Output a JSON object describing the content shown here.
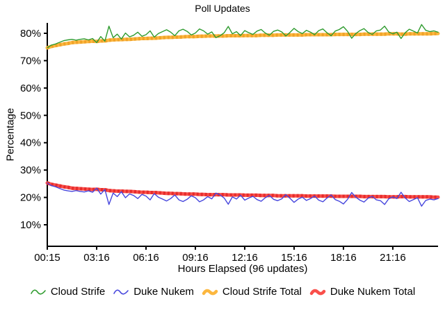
{
  "chart_data": {
    "type": "line",
    "title": "Poll Updates",
    "xlabel": "Hours Elapsed (96 updates)",
    "ylabel": "Percentage",
    "x_points": 96,
    "x_tick_labels": [
      "00:15",
      "03:16",
      "06:16",
      "09:16",
      "12:16",
      "15:16",
      "18:16",
      "21:16"
    ],
    "x_tick_indices": [
      0,
      12,
      24,
      36,
      48,
      60,
      72,
      84
    ],
    "y_ticks": [
      10,
      20,
      30,
      40,
      50,
      60,
      70,
      80
    ],
    "y_tick_labels": [
      "10%",
      "20%",
      "30%",
      "40%",
      "50%",
      "60%",
      "70%",
      "80%"
    ],
    "y_axis_range": [
      2,
      84
    ],
    "grid": false,
    "legend_position": "bottom",
    "axis_color": "#000000",
    "series": [
      {
        "name": "Cloud Strife",
        "color": "#2e9b2e",
        "width": 1.4,
        "style": "solid",
        "values": [
          74.7,
          75.7,
          76.1,
          76.7,
          77.3,
          77.6,
          77.8,
          77.5,
          77.8,
          78.0,
          77.6,
          78.1,
          76.6,
          78.8,
          77.1,
          82.6,
          78.4,
          79.7,
          77.9,
          80.1,
          78.7,
          79.3,
          80.4,
          78.9,
          79.5,
          80.9,
          78.6,
          79.9,
          80.6,
          81.3,
          80.4,
          79.1,
          80.9,
          81.5,
          80.7,
          79.4,
          80.1,
          81.6,
          80.9,
          79.7,
          80.5,
          78.4,
          79.1,
          80.2,
          82.5,
          79.8,
          80.6,
          79.2,
          81.0,
          80.2,
          79.6,
          80.8,
          81.4,
          80.1,
          79.3,
          80.7,
          81.2,
          80.5,
          79.0,
          80.3,
          81.8,
          80.6,
          79.9,
          81.1,
          80.4,
          79.5,
          81.0,
          81.6,
          80.2,
          79.1,
          80.8,
          81.4,
          82.4,
          80.7,
          78.2,
          79.9,
          81.0,
          81.7,
          80.3,
          79.6,
          80.9,
          81.2,
          82.6,
          80.5,
          79.8,
          80.4,
          78.1,
          80.2,
          81.5,
          80.8,
          80.1,
          83.2,
          81.1,
          80.6,
          80.9,
          80.4
        ]
      },
      {
        "name": "Duke Nukem",
        "color": "#4646dd",
        "width": 1.4,
        "style": "solid",
        "values": [
          25.3,
          24.3,
          23.9,
          23.3,
          22.7,
          22.4,
          22.2,
          22.5,
          22.2,
          22.0,
          22.4,
          21.9,
          23.4,
          21.2,
          22.9,
          17.4,
          21.6,
          20.3,
          22.1,
          19.9,
          21.3,
          20.7,
          19.6,
          21.1,
          20.5,
          19.1,
          21.4,
          20.1,
          19.4,
          18.7,
          19.6,
          20.9,
          19.1,
          18.5,
          19.3,
          20.6,
          19.9,
          18.4,
          19.1,
          20.3,
          19.5,
          21.6,
          20.9,
          19.8,
          17.5,
          20.2,
          19.4,
          20.8,
          19.0,
          19.8,
          20.4,
          19.2,
          18.6,
          19.9,
          20.7,
          19.3,
          18.8,
          19.5,
          21.0,
          19.7,
          18.2,
          19.4,
          20.1,
          18.9,
          19.6,
          20.5,
          19.0,
          18.4,
          19.8,
          20.9,
          19.2,
          18.6,
          17.6,
          19.3,
          21.8,
          20.1,
          19.0,
          18.3,
          19.7,
          20.4,
          19.1,
          18.8,
          17.4,
          19.5,
          20.2,
          19.6,
          21.9,
          19.8,
          18.5,
          19.2,
          19.9,
          16.8,
          18.9,
          19.4,
          19.1,
          19.6
        ]
      },
      {
        "name": "Cloud Strife Total",
        "color": "#fcb73f",
        "stripe_color": "#f0a228",
        "width": 5,
        "style": "striped",
        "values": [
          74.7,
          75.2,
          75.5,
          75.8,
          76.1,
          76.3,
          76.6,
          76.7,
          76.8,
          76.9,
          77.0,
          77.1,
          77.0,
          77.2,
          77.2,
          77.5,
          77.6,
          77.7,
          77.7,
          77.8,
          77.8,
          77.9,
          78.0,
          78.1,
          78.1,
          78.2,
          78.2,
          78.3,
          78.4,
          78.5,
          78.5,
          78.6,
          78.6,
          78.7,
          78.8,
          78.8,
          78.8,
          78.9,
          78.9,
          79.0,
          79.0,
          79.0,
          79.0,
          79.0,
          79.1,
          79.1,
          79.1,
          79.1,
          79.2,
          79.2,
          79.2,
          79.2,
          79.3,
          79.3,
          79.3,
          79.3,
          79.4,
          79.4,
          79.4,
          79.4,
          79.4,
          79.4,
          79.4,
          79.5,
          79.5,
          79.5,
          79.5,
          79.5,
          79.5,
          79.5,
          79.6,
          79.6,
          79.6,
          79.6,
          79.6,
          79.6,
          79.6,
          79.7,
          79.7,
          79.7,
          79.7,
          79.7,
          79.7,
          79.8,
          79.8,
          79.8,
          79.7,
          79.7,
          79.8,
          79.8,
          79.8,
          79.8,
          79.8,
          79.8,
          79.9,
          79.9
        ]
      },
      {
        "name": "Duke Nukem Total",
        "color": "#f94f4a",
        "stripe_color": "#e62c2c",
        "width": 5,
        "style": "striped",
        "values": [
          25.3,
          24.8,
          24.5,
          24.2,
          23.9,
          23.7,
          23.4,
          23.3,
          23.2,
          23.1,
          23.0,
          22.9,
          23.0,
          22.8,
          22.8,
          22.5,
          22.4,
          22.3,
          22.3,
          22.2,
          22.2,
          22.1,
          22.0,
          21.9,
          21.9,
          21.8,
          21.8,
          21.7,
          21.6,
          21.5,
          21.5,
          21.4,
          21.4,
          21.3,
          21.2,
          21.2,
          21.2,
          21.1,
          21.1,
          21.0,
          21.0,
          21.0,
          21.0,
          21.0,
          20.9,
          20.9,
          20.9,
          20.9,
          20.8,
          20.8,
          20.8,
          20.8,
          20.7,
          20.7,
          20.7,
          20.7,
          20.6,
          20.6,
          20.6,
          20.6,
          20.6,
          20.6,
          20.6,
          20.5,
          20.5,
          20.5,
          20.5,
          20.5,
          20.5,
          20.5,
          20.4,
          20.4,
          20.4,
          20.4,
          20.4,
          20.4,
          20.4,
          20.3,
          20.3,
          20.3,
          20.3,
          20.3,
          20.3,
          20.2,
          20.2,
          20.2,
          20.3,
          20.3,
          20.2,
          20.2,
          20.2,
          20.2,
          20.2,
          20.2,
          20.1,
          20.1
        ]
      }
    ],
    "draw_order": [
      2,
      3,
      0,
      1
    ]
  }
}
